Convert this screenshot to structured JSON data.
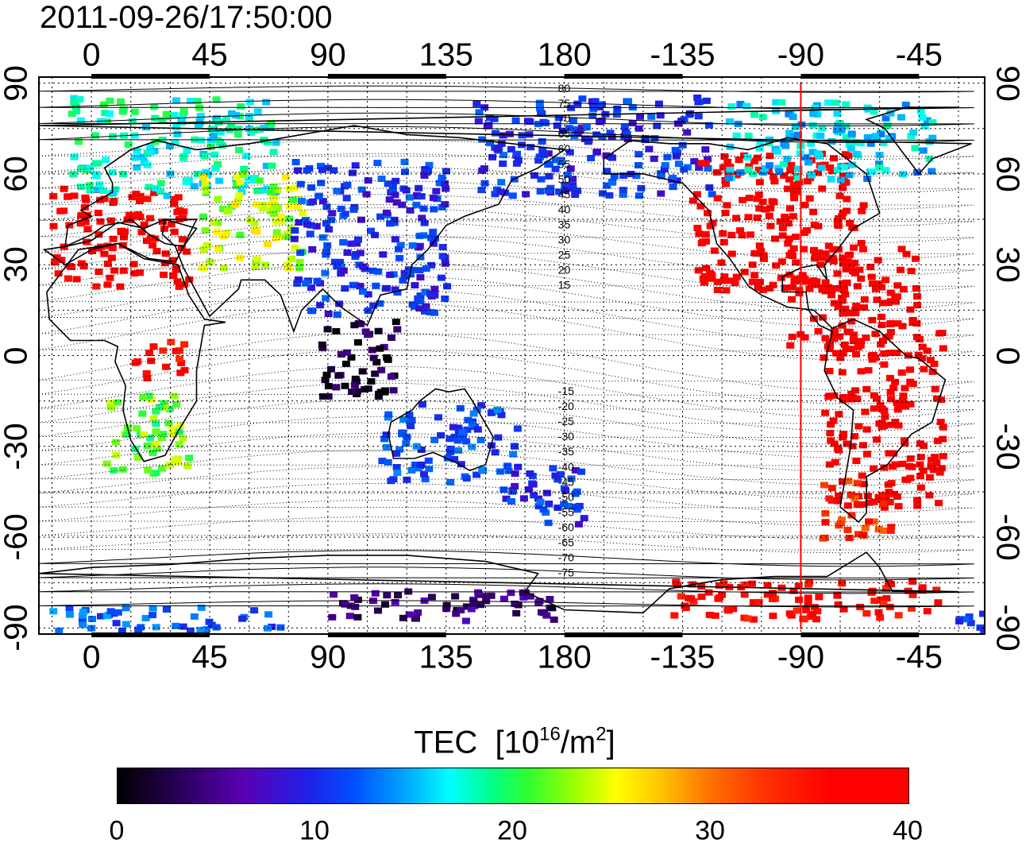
{
  "timestamp": "2011-09-26/17:50:00",
  "longitude_labels": [
    "0",
    "45",
    "90",
    "135",
    "180",
    "-135",
    "-90",
    "-45"
  ],
  "latitude_labels": [
    "90",
    "60",
    "30",
    "0",
    "-30",
    "-60",
    "-90"
  ],
  "contour_labels": [
    "80",
    "75",
    "70",
    "65",
    "60",
    "55",
    "50",
    "45",
    "40",
    "35",
    "30",
    "25",
    "20",
    "15",
    "-15",
    "-20",
    "-25",
    "-30",
    "-35",
    "-40",
    "-45",
    "-50",
    "-55",
    "-60",
    "-65",
    "-70",
    "-75"
  ],
  "colorbar": {
    "title_main": "TEC",
    "title_unit_prefix": "[10",
    "title_exp": "16",
    "title_unit_mid": "/m",
    "title_exp2": "2",
    "title_close": "]",
    "ticks": [
      "0",
      "10",
      "20",
      "30",
      "40"
    ],
    "range": [
      0,
      40
    ]
  },
  "marker_longitude": -90,
  "map_extent": {
    "lon_start": -20,
    "lon_end": 340,
    "lat_min": -90,
    "lat_max": 90
  },
  "colors": {
    "marker": "#ff0000",
    "coast": "#000000",
    "grid": "#000000"
  },
  "tec_regions": [
    {
      "lon": 10,
      "lat": 40,
      "w": 40,
      "h": 25,
      "tec": 38
    },
    {
      "lon": 30,
      "lat": 70,
      "w": 60,
      "h": 25,
      "tec": 18
    },
    {
      "lon": 60,
      "lat": 45,
      "w": 30,
      "h": 25,
      "tec": 24
    },
    {
      "lon": 20,
      "lat": -25,
      "w": 25,
      "h": 20,
      "tec": 22
    },
    {
      "lon": 25,
      "lat": 0,
      "w": 15,
      "h": 10,
      "tec": 36
    },
    {
      "lon": 105,
      "lat": 40,
      "w": 45,
      "h": 40,
      "tec": 10
    },
    {
      "lon": 100,
      "lat": 0,
      "w": 25,
      "h": 20,
      "tec": 2
    },
    {
      "lon": 135,
      "lat": -28,
      "w": 40,
      "h": 20,
      "tec": 11
    },
    {
      "lon": 170,
      "lat": -45,
      "w": 25,
      "h": 15,
      "tec": 10
    },
    {
      "lon": 190,
      "lat": 70,
      "w": 70,
      "h": 25,
      "tec": 10
    },
    {
      "lon": -100,
      "lat": 45,
      "w": 50,
      "h": 35,
      "tec": 40
    },
    {
      "lon": -70,
      "lat": 20,
      "w": 40,
      "h": 25,
      "tec": 40
    },
    {
      "lon": -60,
      "lat": -20,
      "w": 35,
      "h": 45,
      "tec": 40
    },
    {
      "lon": -70,
      "lat": -50,
      "w": 20,
      "h": 15,
      "tec": 33
    },
    {
      "lon": -80,
      "lat": 72,
      "w": 60,
      "h": 20,
      "tec": 16
    },
    {
      "lon": -90,
      "lat": -80,
      "w": 80,
      "h": 10,
      "tec": 36
    },
    {
      "lon": 130,
      "lat": -82,
      "w": 70,
      "h": 8,
      "tec": 4
    },
    {
      "lon": 20,
      "lat": -86,
      "w": 80,
      "h": 6,
      "tec": 12
    }
  ]
}
